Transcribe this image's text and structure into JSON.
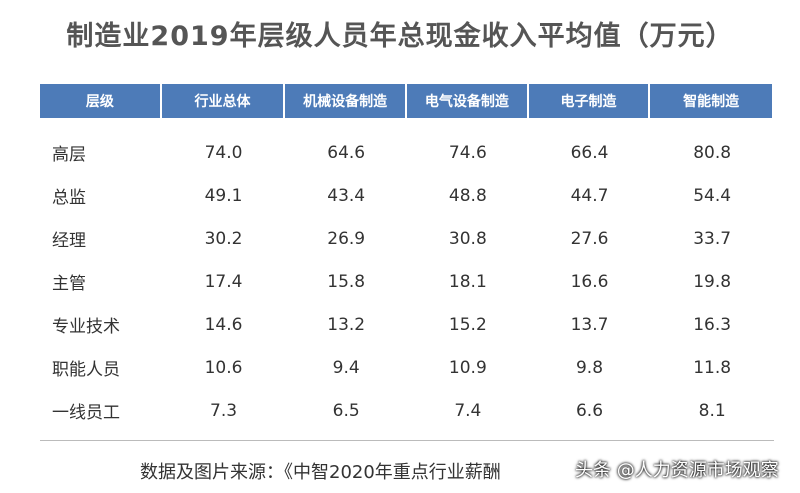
{
  "header": {
    "title": "制造业2019年层级人员年总现金收入平均值（万元）"
  },
  "table": {
    "columns": [
      "层级",
      "行业总体",
      "机械设备制造",
      "电气设备制造",
      "电子制造",
      "智能制造"
    ],
    "rows": [
      [
        "高层",
        "74.0",
        "64.6",
        "74.6",
        "66.4",
        "80.8"
      ],
      [
        "总监",
        "49.1",
        "43.4",
        "48.8",
        "44.7",
        "54.4"
      ],
      [
        "经理",
        "30.2",
        "26.9",
        "30.8",
        "27.6",
        "33.7"
      ],
      [
        "主管",
        "17.4",
        "15.8",
        "18.1",
        "16.6",
        "19.8"
      ],
      [
        "专业技术",
        "14.6",
        "13.2",
        "15.2",
        "13.7",
        "16.3"
      ],
      [
        "职能人员",
        "10.6",
        "9.4",
        "10.9",
        "9.8",
        "11.8"
      ],
      [
        "一线员工",
        "7.3",
        "6.5",
        "7.4",
        "6.6",
        "8.1"
      ]
    ]
  },
  "footer": {
    "source": "数据及图片来源：《中智2020年重点行业薪酬",
    "watermark": "头条 @人力资源市场观察"
  }
}
